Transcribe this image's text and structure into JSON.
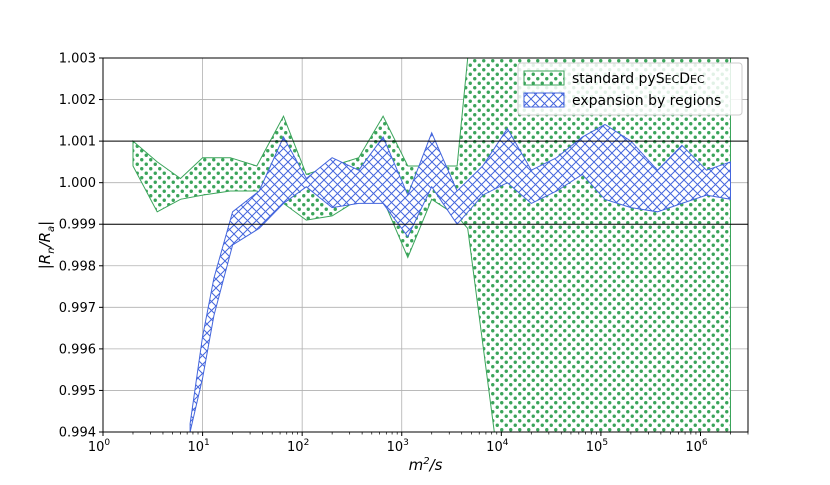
{
  "chart_data": {
    "type": "area",
    "xscale": "log",
    "xlim": [
      1,
      3000000
    ],
    "ylim": [
      0.994,
      1.003
    ],
    "xlabel_main": "m",
    "xlabel_sup": "2",
    "xlabel_tail": "/s",
    "ylabel_main": "|R",
    "ylabel_sub1": "n",
    "ylabel_mid": "/R",
    "ylabel_sub2": "a",
    "ylabel_end": "|",
    "x_ticks": [
      {
        "value": 1,
        "base": "10",
        "exp": "0"
      },
      {
        "value": 10,
        "base": "10",
        "exp": "1"
      },
      {
        "value": 100,
        "base": "10",
        "exp": "2"
      },
      {
        "value": 1000,
        "base": "10",
        "exp": "3"
      },
      {
        "value": 10000,
        "base": "10",
        "exp": "4"
      },
      {
        "value": 100000,
        "base": "10",
        "exp": "5"
      },
      {
        "value": 1000000,
        "base": "10",
        "exp": "6"
      }
    ],
    "y_ticks": [
      {
        "value": 0.994,
        "label": "0.994"
      },
      {
        "value": 0.995,
        "label": "0.995"
      },
      {
        "value": 0.996,
        "label": "0.996"
      },
      {
        "value": 0.997,
        "label": "0.997"
      },
      {
        "value": 0.998,
        "label": "0.998"
      },
      {
        "value": 0.999,
        "label": "0.999"
      },
      {
        "value": 1.0,
        "label": "1.000"
      },
      {
        "value": 1.001,
        "label": "1.001"
      },
      {
        "value": 1.002,
        "label": "1.002"
      },
      {
        "value": 1.003,
        "label": "1.003"
      }
    ],
    "reference_lines": [
      0.999,
      1.001
    ],
    "grid": true,
    "legend_position": "top-right",
    "series": [
      {
        "name": "standard pySecDec",
        "name_parts": [
          "standard py",
          "S",
          "EC",
          "D",
          "EC"
        ],
        "color": "#3aa45a",
        "hatch": "dots",
        "x": [
          2,
          3.5,
          6,
          10,
          19,
          35,
          65,
          110,
          200,
          370,
          650,
          1150,
          2000,
          3600,
          4600,
          8500,
          20000,
          36000,
          65000,
          110000,
          200000,
          370000,
          650000,
          1150000,
          2000000
        ],
        "upper": [
          1.001,
          1.0005,
          1.0001,
          1.0006,
          1.0006,
          1.0004,
          1.0016,
          1.0002,
          1.0004,
          1.0006,
          1.0016,
          1.0004,
          1.0004,
          1.0004,
          1.003,
          1.003,
          1.003,
          1.003,
          1.003,
          1.003,
          1.003,
          1.003,
          1.003,
          1.003,
          1.003
        ],
        "lower": [
          1.0004,
          0.9993,
          0.9996,
          0.9997,
          0.9998,
          0.9998,
          0.9995,
          0.9991,
          0.9992,
          0.9996,
          0.9996,
          0.9982,
          0.9996,
          0.9992,
          0.9989,
          0.994,
          0.994,
          0.994,
          0.994,
          0.994,
          0.994,
          0.994,
          0.994,
          0.994,
          0.994
        ]
      },
      {
        "name": "expansion by regions",
        "color": "#4466dd",
        "hatch": "crosshatch",
        "x": [
          7.5,
          10,
          13,
          20,
          37,
          65,
          110,
          200,
          370,
          650,
          1150,
          2000,
          3600,
          6500,
          11500,
          20000,
          36000,
          65000,
          110000,
          200000,
          370000,
          650000,
          1150000,
          2000000
        ],
        "upper": [
          0.9942,
          0.9963,
          0.9977,
          0.9993,
          0.9998,
          1.0011,
          1.0001,
          1.0006,
          1.0003,
          1.0011,
          0.9997,
          1.0012,
          0.9998,
          1.0004,
          1.0013,
          1.0003,
          1.0006,
          1.0011,
          1.0014,
          1.001,
          1.0003,
          1.0009,
          1.0003,
          1.0005
        ],
        "lower": [
          0.994,
          0.9953,
          0.9968,
          0.9985,
          0.9989,
          0.9995,
          0.9999,
          0.9994,
          0.9995,
          0.9995,
          0.9987,
          0.9999,
          0.999,
          0.9997,
          1.0,
          0.9995,
          0.9998,
          1.0002,
          0.9996,
          0.9994,
          0.9993,
          0.9995,
          0.9997,
          0.9996
        ]
      }
    ]
  }
}
